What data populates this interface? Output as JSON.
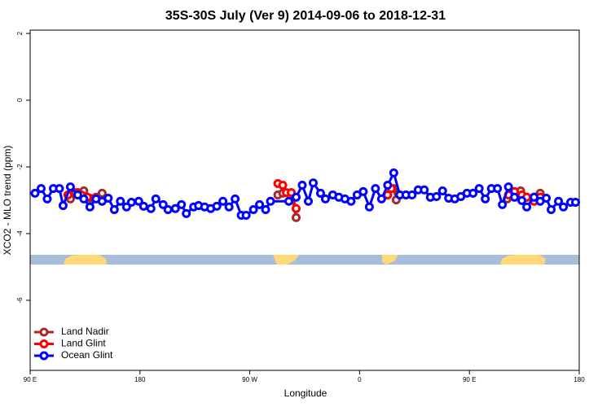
{
  "chart_data": {
    "type": "line",
    "title": "35S-30S July (Ver 9)   2014-09-06 to 2018-12-31",
    "xlabel": "Longitude",
    "ylabel": "XCO2 - MLO trend (ppm)",
    "xlim": [
      90,
      540
    ],
    "ylim": [
      -8.1,
      2.1
    ],
    "xticks": [
      {
        "value": 90,
        "label": "90 E"
      },
      {
        "value": 180,
        "label": "180"
      },
      {
        "value": 270,
        "label": "90 W"
      },
      {
        "value": 360,
        "label": "0"
      },
      {
        "value": 450,
        "label": "90 E"
      },
      {
        "value": 540,
        "label": "180"
      }
    ],
    "yticks": [
      -6,
      -4,
      -2,
      0,
      2
    ],
    "legend": "bottomleft",
    "series": [
      {
        "name": "Land Nadir",
        "color": "#a52a2a",
        "x": [
          123,
          129,
          134,
          139,
          144,
          149,
          null,
          293,
          297,
          304,
          308,
          null,
          383,
          388,
          390,
          null,
          481,
          487,
          492,
          497,
          503,
          508
        ],
        "values": [
          -2.96,
          -2.77,
          -2.72,
          -2.94,
          -2.91,
          -2.79,
          null,
          -2.84,
          -2.79,
          -2.77,
          -3.52,
          null,
          -2.84,
          -2.65,
          -2.99,
          null,
          -2.96,
          -2.84,
          -2.72,
          -2.91,
          -2.91,
          -2.79
        ]
      },
      {
        "name": "Land Glint",
        "color": "#ff0000",
        "x": [
          121,
          127,
          132,
          137,
          143,
          149,
          null,
          293,
          297,
          300,
          304,
          308,
          null,
          383,
          386,
          null,
          482,
          487,
          493,
          497,
          503,
          508
        ],
        "values": [
          -2.84,
          -2.77,
          -2.84,
          -2.91,
          -2.94,
          -3.03,
          null,
          -2.5,
          -2.55,
          -2.77,
          -2.77,
          -3.25,
          null,
          -2.84,
          -2.65,
          null,
          -2.84,
          -2.74,
          -2.84,
          -2.91,
          -3.03,
          -2.91
        ]
      },
      {
        "name": "Ocean Glint",
        "color": "#0000ff",
        "x": [
          94,
          99,
          104,
          109,
          114,
          117,
          123,
          129,
          134,
          139,
          144,
          149,
          154,
          159,
          164,
          169,
          173,
          179,
          183,
          189,
          193,
          199,
          203,
          209,
          214,
          218,
          224,
          228,
          233,
          238,
          243,
          248,
          253,
          258,
          263,
          267,
          273,
          278,
          283,
          287,
          302,
          308,
          313,
          318,
          322,
          328,
          332,
          338,
          343,
          348,
          353,
          358,
          363,
          368,
          373,
          378,
          383,
          388,
          393,
          398,
          403,
          408,
          413,
          418,
          423,
          428,
          433,
          438,
          443,
          448,
          453,
          458,
          463,
          468,
          473,
          477,
          482,
          487,
          493,
          497,
          503,
          508,
          513,
          517,
          523,
          527,
          533,
          537
        ],
        "values": [
          -2.79,
          -2.65,
          -2.96,
          -2.65,
          -2.65,
          -3.16,
          -2.6,
          -2.84,
          -2.96,
          -3.2,
          -2.96,
          -3.03,
          -2.94,
          -3.28,
          -3.03,
          -3.2,
          -3.06,
          -3.03,
          -3.18,
          -3.25,
          -2.96,
          -3.13,
          -3.28,
          -3.25,
          -3.13,
          -3.4,
          -3.2,
          -3.16,
          -3.2,
          -3.25,
          -3.18,
          -3.03,
          -3.2,
          -2.96,
          -3.45,
          -3.45,
          -3.28,
          -3.13,
          -3.28,
          -3.03,
          -3.03,
          -2.91,
          -2.55,
          -3.03,
          -2.48,
          -2.79,
          -2.96,
          -2.84,
          -2.91,
          -2.96,
          -3.03,
          -2.84,
          -2.74,
          -3.2,
          -2.65,
          -2.96,
          -2.55,
          -2.18,
          -2.84,
          -2.84,
          -2.84,
          -2.69,
          -2.69,
          -2.91,
          -2.89,
          -2.72,
          -2.94,
          -2.96,
          -2.89,
          -2.79,
          -2.79,
          -2.65,
          -2.96,
          -2.65,
          -2.65,
          -3.13,
          -2.6,
          -2.91,
          -3.01,
          -3.2,
          -2.91,
          -3.03,
          -2.94,
          -3.28,
          -3.03,
          -3.2,
          -3.06,
          -3.06
        ]
      }
    ]
  }
}
